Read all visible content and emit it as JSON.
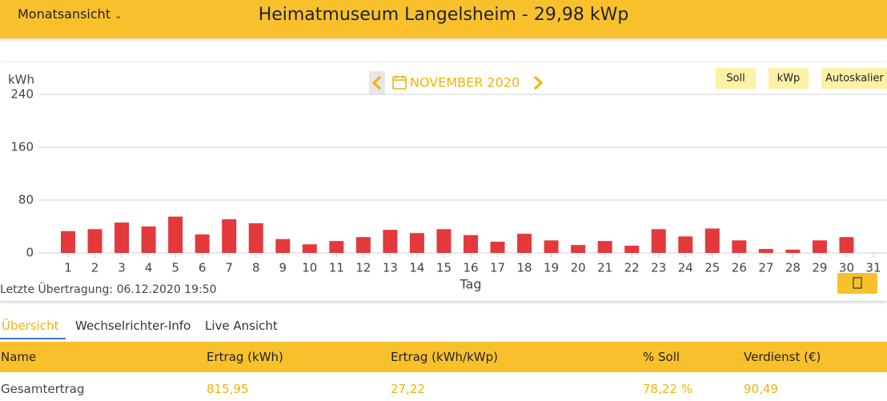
{
  "header": {
    "menu": "Monatsansicht",
    "title": "Heimatmuseum Langelsheim - 29,98 kWp"
  },
  "chart_data": {
    "type": "bar",
    "title": "NOVEMBER 2020",
    "y_label": "kWh",
    "x_label": "Tag",
    "categories": [
      "1",
      "2",
      "3",
      "4",
      "5",
      "6",
      "7",
      "8",
      "9",
      "10",
      "11",
      "12",
      "13",
      "14",
      "15",
      "16",
      "17",
      "18",
      "19",
      "20",
      "21",
      "22",
      "23",
      "24",
      "25",
      "26",
      "27",
      "28",
      "29",
      "30",
      "31"
    ],
    "values": [
      33,
      36,
      46,
      40,
      55,
      28,
      51,
      45,
      21,
      13,
      18,
      24,
      35,
      30,
      36,
      27,
      17,
      29,
      19,
      12,
      18,
      11,
      36,
      25,
      37,
      19,
      6,
      5,
      19,
      24,
      null
    ],
    "color": "#e3393d",
    "ylim": [
      0,
      240
    ],
    "yticks": [
      0,
      80,
      160,
      240
    ],
    "grid": true
  },
  "buttons": [
    "Soll",
    "kWp",
    "Autoskalier"
  ],
  "status": "Letzte Übertragung: 06.12.2020 19:50",
  "tabs": [
    "Übersicht",
    "Wechselrichter-Info",
    "Live Ansicht"
  ],
  "table": {
    "header": [
      "Name",
      "Ertrag (kWh)",
      "Ertrag (kWh/kWp)",
      "% Soll",
      "Verdienst (€)"
    ],
    "rows": [
      [
        "Gesamtertrag",
        "815,95",
        "27,22",
        "78,22 %",
        "90,49"
      ]
    ]
  }
}
